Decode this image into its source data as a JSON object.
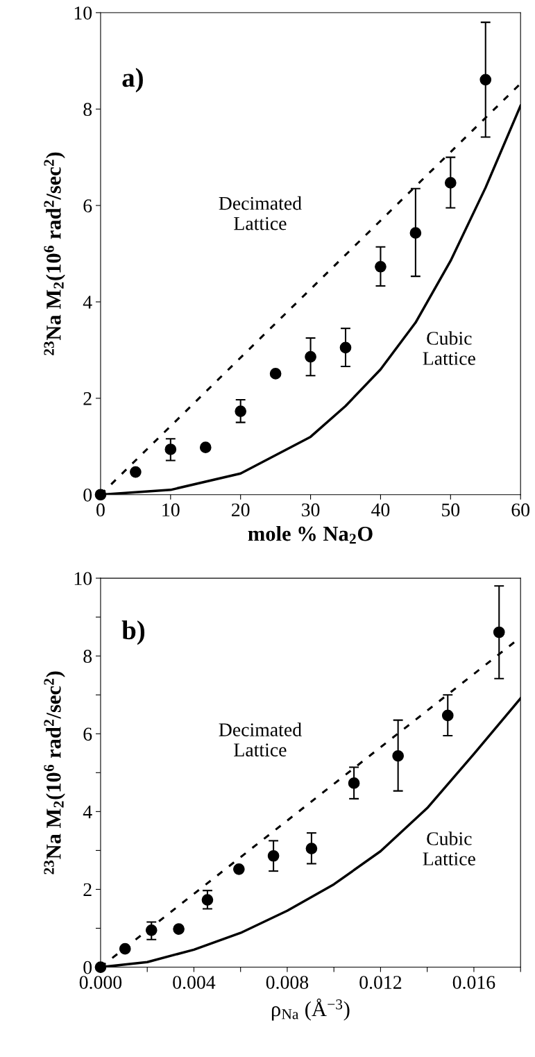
{
  "chart_data": [
    {
      "type": "scatter",
      "xlabel": "mole % Na$_{2}$O",
      "ylabel": "$^{23}$Na M$_{2}$(10$^{6}$ rad$^{2}$/sec$^{2}$)",
      "annotations": [
        "a)",
        "Decimated\nLattice",
        "Cubic\nLattice"
      ],
      "xlim": [
        0,
        60
      ],
      "xticks": [
        0,
        10,
        20,
        30,
        40,
        50,
        60
      ],
      "ylim": [
        0,
        10
      ],
      "yticks": [
        0,
        2,
        4,
        6,
        8,
        10
      ],
      "grid": false,
      "legend": false,
      "marker": "circle",
      "series": [
        {
          "color": "#000000",
          "x": [
            0,
            5,
            10,
            15,
            20,
            25,
            30,
            35,
            40,
            45,
            50,
            55
          ],
          "values": [
            0,
            0.47,
            0.94,
            0.98,
            1.73,
            2.51,
            2.86,
            3.05,
            4.73,
            5.43,
            6.47,
            8.61
          ],
          "errors": [
            null,
            null,
            [
              0.71,
              1.16
            ],
            null,
            [
              1.5,
              1.97
            ],
            null,
            [
              2.47,
              3.25
            ],
            [
              2.66,
              3.45
            ],
            [
              4.33,
              5.14
            ],
            [
              4.53,
              6.35
            ],
            [
              5.95,
              7.0
            ],
            [
              7.42,
              9.8
            ]
          ]
        },
        {
          "type": "line",
          "line_style": "dashed",
          "marker": "none",
          "color": "#000000",
          "x": [
            0,
            60
          ],
          "values": [
            0,
            8.53
          ]
        },
        {
          "type": "line",
          "line_style": "solid",
          "marker": "none",
          "color": "#000000",
          "x": [
            0,
            10,
            20,
            30,
            35,
            40,
            45,
            50,
            55,
            60
          ],
          "values": [
            0,
            0.1,
            0.44,
            1.2,
            1.84,
            2.6,
            3.57,
            4.85,
            6.37,
            8.07
          ]
        }
      ]
    },
    {
      "type": "scatter",
      "xlabel": "ρ$_{Na}$ (Å$^{−3}$)",
      "ylabel": "$^{23}$Na M$_{2}$(10$^{6}$ rad$^{2}$/sec$^{2}$)",
      "annotations": [
        "b)",
        "Decimated\nLattice",
        "Cubic\nLattice"
      ],
      "xlim": [
        0,
        0.018
      ],
      "xticks": [
        {
          "value": 0,
          "label": "0.000"
        },
        {
          "value": 0.002,
          "label": null
        },
        {
          "value": 0.004,
          "label": "0.004"
        },
        {
          "value": 0.006,
          "label": null
        },
        {
          "value": 0.008,
          "label": "0.008"
        },
        {
          "value": 0.01,
          "label": null
        },
        {
          "value": 0.012,
          "label": "0.012"
        },
        {
          "value": 0.014,
          "label": null
        },
        {
          "value": 0.016,
          "label": "0.016"
        },
        {
          "value": 0.018,
          "label": null
        }
      ],
      "ylim": [
        0,
        10
      ],
      "yticks": [
        0,
        {
          "value": 1,
          "label": null
        },
        2,
        {
          "value": 3,
          "label": null
        },
        4,
        {
          "value": 5,
          "label": null
        },
        6,
        {
          "value": 7,
          "label": null
        },
        8,
        {
          "value": 9,
          "label": null
        },
        10
      ],
      "grid": false,
      "legend": false,
      "marker": "circle",
      "series": [
        {
          "color": "#000000",
          "x": [
            0,
            0.00105,
            0.00218,
            0.00335,
            0.00458,
            0.00593,
            0.00741,
            0.00904,
            0.01086,
            0.01275,
            0.01488,
            0.01708
          ],
          "values": [
            0,
            0.47,
            0.95,
            0.98,
            1.73,
            2.52,
            2.86,
            3.05,
            4.73,
            5.43,
            6.47,
            8.61
          ],
          "errors": [
            null,
            null,
            [
              0.71,
              1.16
            ],
            null,
            [
              1.5,
              1.97
            ],
            null,
            [
              2.47,
              3.25
            ],
            [
              2.66,
              3.45
            ],
            [
              4.33,
              5.14
            ],
            [
              4.53,
              6.35
            ],
            [
              5.95,
              7.0
            ],
            [
              7.42,
              9.8
            ]
          ]
        },
        {
          "type": "line",
          "line_style": "dashed",
          "marker": "none",
          "color": "#000000",
          "x": [
            0,
            0.018
          ],
          "values": [
            0,
            8.48
          ]
        },
        {
          "type": "line",
          "line_style": "solid",
          "marker": "none",
          "color": "#000000",
          "x": [
            0,
            0.002,
            0.004,
            0.006,
            0.008,
            0.01,
            0.012,
            0.014,
            0.016,
            0.018
          ],
          "values": [
            0,
            0.13,
            0.45,
            0.88,
            1.45,
            2.13,
            2.98,
            4.09,
            5.48,
            6.91
          ]
        }
      ]
    }
  ]
}
